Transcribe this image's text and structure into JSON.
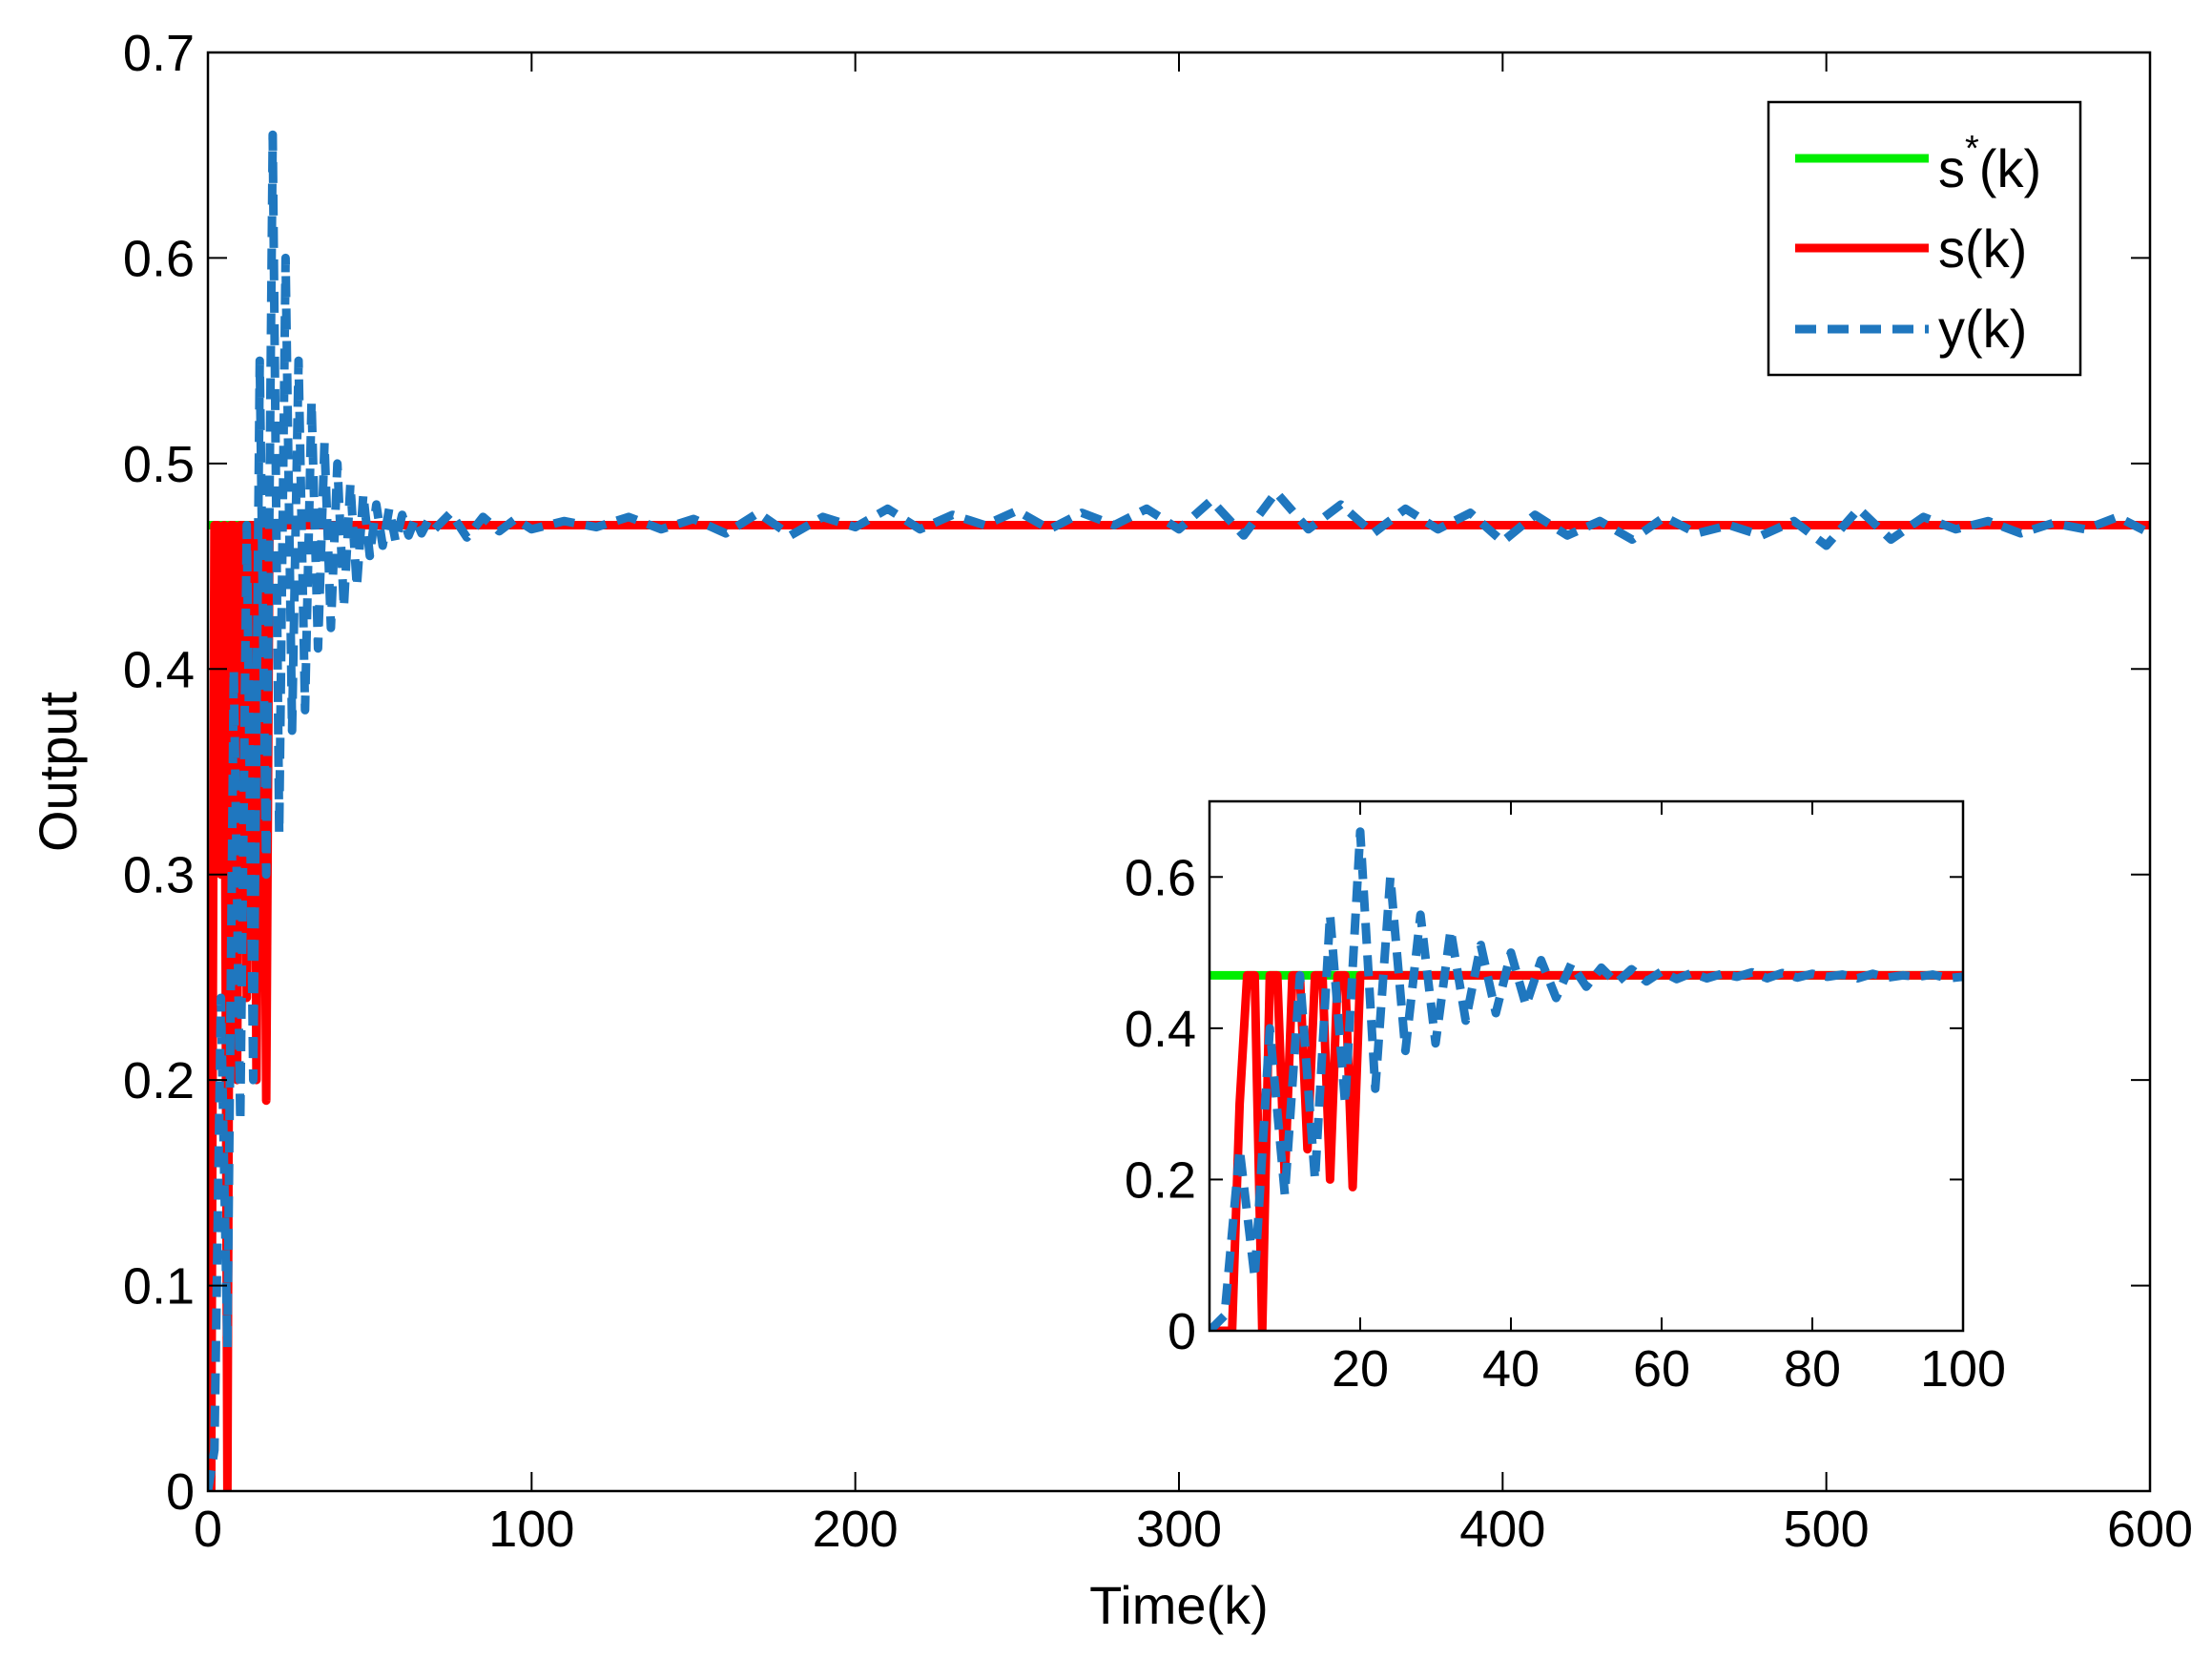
{
  "chart_data": [
    {
      "id": "main",
      "type": "line",
      "xlabel": "Time(k)",
      "ylabel": "Output",
      "xlim": [
        0,
        600
      ],
      "ylim": [
        0,
        0.7
      ],
      "xticks": [
        0,
        100,
        200,
        300,
        400,
        500,
        600
      ],
      "xtick_labels": [
        "0",
        "100",
        "200",
        "300",
        "400",
        "500",
        "600"
      ],
      "yticks": [
        0,
        0.1,
        0.2,
        0.3,
        0.4,
        0.5,
        0.6,
        0.7
      ],
      "ytick_labels": [
        "0",
        "0.1",
        "0.2",
        "0.3",
        "0.4",
        "0.5",
        "0.6",
        "0.7"
      ],
      "grid": false,
      "legend_position": "top-right",
      "legend": [
        {
          "label_base": "s",
          "label_sup": "*",
          "label_rest": "(k)",
          "color": "#00ee00",
          "style": "solid"
        },
        {
          "label_base": "s",
          "label_sup": "",
          "label_rest": "(k)",
          "color": "#ff0000",
          "style": "solid"
        },
        {
          "label_base": "y",
          "label_sup": "",
          "label_rest": "(k)",
          "color": "#1f77bf",
          "style": "dashed"
        }
      ],
      "series": [
        {
          "name": "s*(k)",
          "color": "#00ee00",
          "style": "solid",
          "x": [
            0,
            600
          ],
          "values": [
            0.47,
            0.47
          ]
        },
        {
          "name": "s(k)",
          "color": "#ff0000",
          "style": "solid",
          "x": [
            0,
            1,
            2,
            3,
            4,
            5,
            6,
            7,
            8,
            9,
            10,
            11,
            12,
            13,
            14,
            15,
            16,
            17,
            18,
            19,
            20,
            600
          ],
          "values": [
            0,
            0,
            0.47,
            0.47,
            0.3,
            0.47,
            0,
            0.47,
            0.47,
            0.2,
            0.47,
            0.47,
            0.24,
            0.47,
            0.47,
            0.2,
            0.47,
            0.47,
            0.19,
            0.47,
            0.47,
            0.47
          ]
        },
        {
          "name": "y(k)",
          "color": "#1f77bf",
          "style": "dashed",
          "x": [
            0,
            2,
            4,
            6,
            8,
            10,
            12,
            14,
            16,
            18,
            20,
            22,
            24,
            26,
            28,
            30,
            32,
            34,
            36,
            38,
            40,
            42,
            44,
            46,
            48,
            50,
            52,
            54,
            56,
            58,
            60,
            62,
            64,
            66,
            68,
            70,
            75,
            80,
            85,
            90,
            95,
            100,
            110,
            120,
            130,
            140,
            150,
            160,
            170,
            180,
            190,
            200,
            210,
            220,
            230,
            240,
            250,
            260,
            270,
            280,
            290,
            300,
            310,
            320,
            330,
            340,
            350,
            360,
            370,
            380,
            390,
            400,
            410,
            420,
            430,
            440,
            450,
            460,
            470,
            480,
            490,
            500,
            510,
            520,
            530,
            540,
            550,
            560,
            570,
            580,
            590,
            600
          ],
          "values": [
            0,
            0.02,
            0.24,
            0.07,
            0.4,
            0.18,
            0.47,
            0.2,
            0.55,
            0.3,
            0.66,
            0.32,
            0.6,
            0.37,
            0.55,
            0.38,
            0.53,
            0.41,
            0.51,
            0.42,
            0.5,
            0.43,
            0.49,
            0.44,
            0.485,
            0.455,
            0.48,
            0.46,
            0.478,
            0.462,
            0.475,
            0.465,
            0.473,
            0.466,
            0.472,
            0.468,
            0.476,
            0.464,
            0.474,
            0.467,
            0.473,
            0.468,
            0.472,
            0.469,
            0.474,
            0.468,
            0.473,
            0.466,
            0.476,
            0.465,
            0.474,
            0.469,
            0.478,
            0.468,
            0.475,
            0.47,
            0.477,
            0.468,
            0.476,
            0.47,
            0.478,
            0.468,
            0.482,
            0.465,
            0.486,
            0.468,
            0.48,
            0.466,
            0.478,
            0.468,
            0.476,
            0.462,
            0.475,
            0.465,
            0.472,
            0.463,
            0.474,
            0.466,
            0.47,
            0.465,
            0.472,
            0.46,
            0.478,
            0.463,
            0.474,
            0.468,
            0.472,
            0.466,
            0.471,
            0.468,
            0.474,
            0.466
          ]
        }
      ]
    },
    {
      "id": "inset",
      "type": "line",
      "xlim": [
        0,
        100
      ],
      "ylim": [
        0,
        0.7
      ],
      "xticks": [
        20,
        40,
        60,
        80,
        100
      ],
      "xtick_labels": [
        "20",
        "40",
        "60",
        "80",
        "100"
      ],
      "yticks": [
        0,
        0.2,
        0.4,
        0.6
      ],
      "ytick_labels": [
        "0",
        "0.2",
        "0.4",
        "0.6"
      ],
      "grid": false,
      "series": [
        {
          "name": "s*(k)",
          "color": "#00ee00",
          "style": "solid",
          "x": [
            0,
            100
          ],
          "values": [
            0.47,
            0.47
          ]
        },
        {
          "name": "s(k)",
          "color": "#ff0000",
          "style": "solid",
          "x": [
            0,
            3,
            4,
            5,
            6,
            7,
            8,
            9,
            10,
            11,
            12,
            13,
            14,
            15,
            16,
            17,
            18,
            19,
            20,
            100
          ],
          "values": [
            0,
            0,
            0.3,
            0.47,
            0.47,
            0,
            0.47,
            0.47,
            0.2,
            0.47,
            0.47,
            0.24,
            0.47,
            0.47,
            0.2,
            0.47,
            0.47,
            0.19,
            0.47,
            0.47
          ]
        },
        {
          "name": "y(k)",
          "color": "#1f77bf",
          "style": "dashed",
          "x": [
            0,
            2,
            4,
            6,
            8,
            10,
            12,
            14,
            16,
            18,
            20,
            22,
            24,
            26,
            28,
            30,
            32,
            34,
            36,
            38,
            40,
            42,
            44,
            46,
            48,
            50,
            52,
            54,
            56,
            58,
            60,
            62,
            64,
            66,
            68,
            70,
            72,
            74,
            76,
            78,
            80,
            82,
            84,
            86,
            88,
            90,
            92,
            94,
            96,
            98,
            100
          ],
          "values": [
            0,
            0.02,
            0.24,
            0.07,
            0.4,
            0.18,
            0.47,
            0.2,
            0.55,
            0.3,
            0.66,
            0.32,
            0.6,
            0.37,
            0.55,
            0.38,
            0.53,
            0.41,
            0.51,
            0.42,
            0.5,
            0.43,
            0.49,
            0.44,
            0.485,
            0.455,
            0.48,
            0.46,
            0.478,
            0.462,
            0.475,
            0.465,
            0.473,
            0.466,
            0.472,
            0.468,
            0.474,
            0.466,
            0.473,
            0.467,
            0.472,
            0.468,
            0.471,
            0.466,
            0.472,
            0.467,
            0.47,
            0.468,
            0.471,
            0.466,
            0.468
          ]
        }
      ]
    }
  ]
}
